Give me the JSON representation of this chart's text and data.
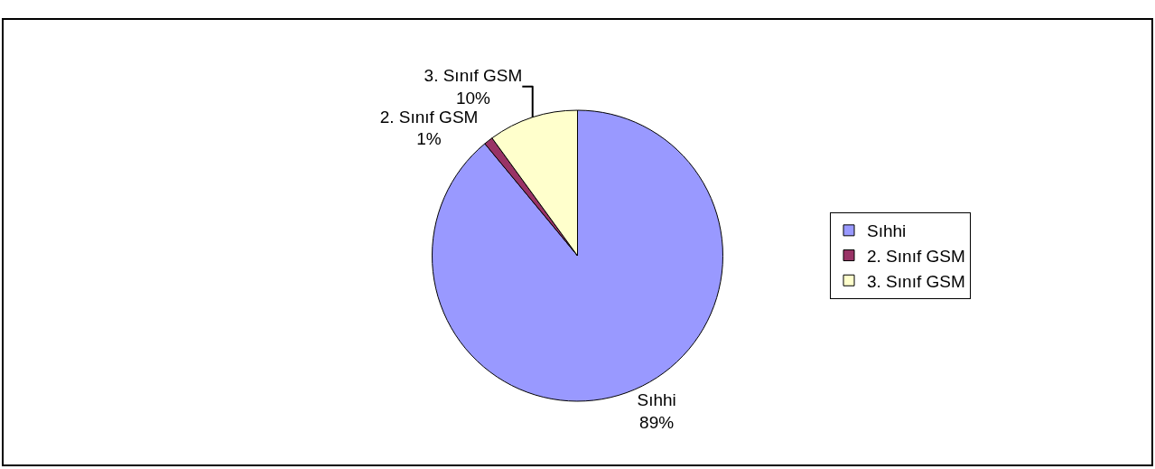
{
  "chart_data": {
    "type": "pie",
    "categories": [
      "Sıhhi",
      "2. Sınıf GSM",
      "3. Sınıf GSM"
    ],
    "values": [
      89,
      1,
      10
    ],
    "value_labels": [
      "89%",
      "1%",
      "10%"
    ],
    "colors": [
      "#9999ff",
      "#993366",
      "#ffffcc"
    ],
    "legend": "right"
  }
}
